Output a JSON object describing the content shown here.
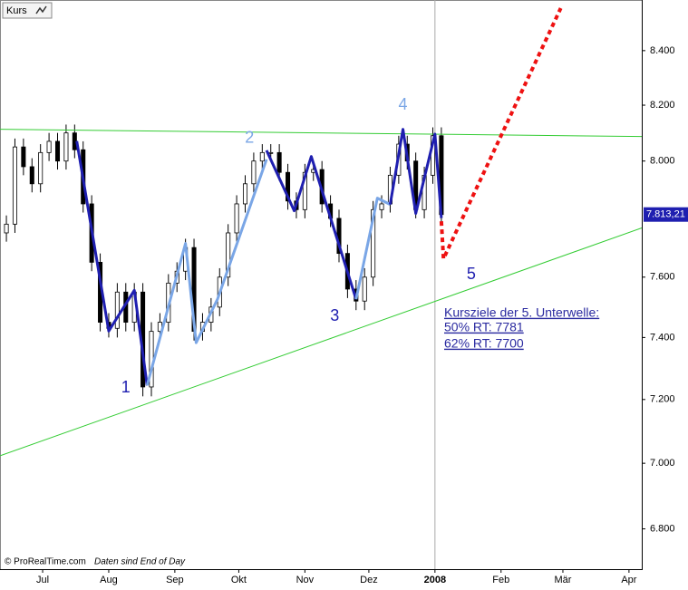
{
  "chart_data": {
    "type": "candlestick",
    "title": "Kurs",
    "source": "© ProRealTime.com",
    "note": "Daten sind End of Day",
    "x": [
      -17,
      -13,
      -9,
      -5,
      -1,
      3,
      7,
      11,
      15,
      19,
      23,
      27,
      31,
      35,
      39,
      43,
      47,
      51,
      55,
      59,
      63,
      67,
      71,
      75,
      79,
      83,
      87,
      91,
      95,
      99,
      103,
      107,
      111,
      115,
      119,
      123,
      127,
      131,
      135,
      139,
      143,
      147,
      151,
      155,
      159,
      163,
      167,
      171,
      175,
      179,
      183,
      187
    ],
    "open": [
      7750,
      7780,
      8050,
      7980,
      7920,
      8030,
      8070,
      8000,
      8100,
      8040,
      7850,
      7650,
      7450,
      7430,
      7550,
      7450,
      7550,
      7240,
      7420,
      7450,
      7580,
      7620,
      7700,
      7420,
      7450,
      7500,
      7600,
      7750,
      7850,
      7920,
      8000,
      8030,
      8030,
      7960,
      7860,
      7830,
      7960,
      7970,
      7850,
      7800,
      7680,
      7560,
      7520,
      7600,
      7830,
      7850,
      7950,
      8060,
      8000,
      7830,
      7950,
      8090
    ],
    "high": [
      7810,
      8080,
      8080,
      8010,
      8060,
      8100,
      8100,
      8130,
      8130,
      8070,
      7880,
      7680,
      7480,
      7580,
      7580,
      7580,
      7580,
      7450,
      7480,
      7610,
      7650,
      7730,
      7730,
      7480,
      7530,
      7630,
      7780,
      7880,
      7950,
      8030,
      8060,
      8060,
      8060,
      7990,
      7890,
      7990,
      8000,
      8000,
      7880,
      7830,
      7710,
      7590,
      7630,
      7860,
      7880,
      7980,
      8090,
      8090,
      8030,
      7980,
      8120,
      8120
    ],
    "low": [
      7720,
      7750,
      7950,
      7890,
      7890,
      8000,
      7970,
      7970,
      8010,
      7820,
      7620,
      7420,
      7400,
      7400,
      7420,
      7420,
      7210,
      7210,
      7390,
      7420,
      7550,
      7590,
      7390,
      7390,
      7420,
      7470,
      7570,
      7720,
      7820,
      7890,
      7970,
      8000,
      7930,
      7830,
      7800,
      7800,
      7930,
      7820,
      7770,
      7650,
      7530,
      7490,
      7490,
      7570,
      7800,
      7820,
      7920,
      7970,
      7800,
      7800,
      7920,
      7783
    ],
    "close": [
      7780,
      8050,
      7980,
      7920,
      8030,
      8070,
      8000,
      8100,
      8040,
      7850,
      7650,
      7450,
      7430,
      7550,
      7450,
      7550,
      7240,
      7420,
      7450,
      7580,
      7620,
      7700,
      7420,
      7450,
      7500,
      7600,
      7750,
      7850,
      7920,
      8000,
      8030,
      8030,
      7960,
      7860,
      7830,
      7960,
      7970,
      7850,
      7800,
      7680,
      7560,
      7520,
      7600,
      7830,
      7850,
      7950,
      8060,
      8000,
      7830,
      7950,
      8090,
      7813
    ],
    "up_color": "#ffffff",
    "down_color": "#000000",
    "xlim": [
      -20,
      281
    ],
    "xticks": [
      {
        "value": 0,
        "label": "Jul"
      },
      {
        "value": 31,
        "label": "Aug"
      },
      {
        "value": 62,
        "label": "Sep"
      },
      {
        "value": 92,
        "label": "Okt"
      },
      {
        "value": 123,
        "label": "Nov"
      },
      {
        "value": 153,
        "label": "Dez"
      },
      {
        "value": 184,
        "label": "2008"
      },
      {
        "value": 215,
        "label": "Feb"
      },
      {
        "value": 244,
        "label": "Mär"
      },
      {
        "value": 275,
        "label": "Apr"
      }
    ],
    "ylim": [
      6680,
      8590
    ],
    "yscale": "log",
    "yticks": [
      {
        "value": 6800,
        "label": "6.800"
      },
      {
        "value": 7000,
        "label": "7.000"
      },
      {
        "value": 7200,
        "label": "7.200"
      },
      {
        "value": 7400,
        "label": "7.400"
      },
      {
        "value": 7600,
        "label": "7.600"
      },
      {
        "value": 8000,
        "label": "8.000"
      },
      {
        "value": 8200,
        "label": "8.200"
      },
      {
        "value": 8400,
        "label": "8.400"
      }
    ],
    "year_divider": 184,
    "last_price": {
      "value": 7813.21,
      "label": "7.813,21",
      "color": "#1f1fb0"
    },
    "lines": [
      {
        "color": "#33cc33",
        "width": 1,
        "dotted": false,
        "x": [
          -20,
          281
        ],
        "values": [
          8113,
          8087
        ]
      },
      {
        "color": "#33cc33",
        "width": 1,
        "dotted": false,
        "x": [
          -20,
          281
        ],
        "values": [
          7023,
          7767
        ]
      },
      {
        "color": "#1f1fb0",
        "width": 3,
        "dotted": false,
        "x": [
          16,
          31,
          43,
          49
        ],
        "values": [
          8071,
          7421,
          7556,
          7245
        ]
      },
      {
        "color": "#7aa6e6",
        "width": 3,
        "dotted": false,
        "x": [
          49,
          67,
          72,
          82,
          105
        ],
        "values": [
          7245,
          7714,
          7383,
          7526,
          8006
        ]
      },
      {
        "color": "#1f1fb0",
        "width": 3,
        "dotted": false,
        "x": [
          105,
          118,
          126,
          147
        ],
        "values": [
          8038,
          7826,
          8016,
          7526
        ]
      },
      {
        "color": "#7aa6e6",
        "width": 3,
        "dotted": false,
        "x": [
          147,
          157,
          163
        ],
        "values": [
          7526,
          7870,
          7848
        ]
      },
      {
        "color": "#1f1fb0",
        "width": 3,
        "dotted": false,
        "x": [
          163,
          169,
          175,
          184,
          187
        ],
        "values": [
          7848,
          8113,
          7817,
          8096,
          7801
        ]
      },
      {
        "color": "#ee1111",
        "width": 4,
        "dotted": true,
        "x": [
          187,
          188,
          243
        ],
        "values": [
          7790,
          7662,
          8559
        ]
      }
    ],
    "annotations": [
      {
        "text": "1",
        "x": 39,
        "y": 7237,
        "color": "#1f1fb0"
      },
      {
        "text": "2",
        "x": 97,
        "y": 8081,
        "color": "#7aa6e6"
      },
      {
        "text": "3",
        "x": 137,
        "y": 7469,
        "color": "#1f1fb0"
      },
      {
        "text": "4",
        "x": 169,
        "y": 8200,
        "color": "#7aa6e6"
      },
      {
        "text": "5",
        "x": 201,
        "y": 7607,
        "color": "#1f1fb0"
      }
    ],
    "targets": [
      "Kursziele der 5. Unterwelle:",
      "50% RT: 7781",
      "62% RT: 7700"
    ]
  }
}
